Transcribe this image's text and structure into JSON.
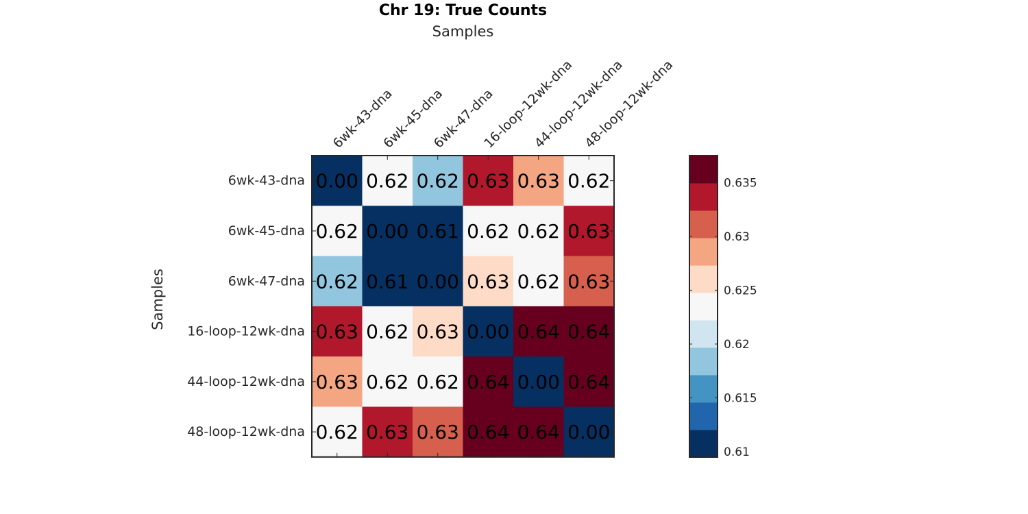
{
  "chart_data": {
    "type": "heatmap",
    "title": "Chr 19: True Counts",
    "xlabel": "Samples",
    "ylabel": "Samples",
    "x_categories": [
      "6wk-43-dna",
      "6wk-45-dna",
      "6wk-47-dna",
      "16-loop-12wk-dna",
      "44-loop-12wk-dna",
      "48-loop-12wk-dna"
    ],
    "y_categories": [
      "6wk-43-dna",
      "6wk-45-dna",
      "6wk-47-dna",
      "16-loop-12wk-dna",
      "44-loop-12wk-dna",
      "48-loop-12wk-dna"
    ],
    "values": [
      [
        0.0,
        0.6225,
        0.619,
        0.634,
        0.6295,
        0.6225
      ],
      [
        0.6225,
        0.0,
        0.61,
        0.6225,
        0.6225,
        0.634
      ],
      [
        0.619,
        0.61,
        0.0,
        0.6265,
        0.6225,
        0.632
      ],
      [
        0.634,
        0.6225,
        0.6265,
        0.0,
        0.637,
        0.637
      ],
      [
        0.6295,
        0.6225,
        0.6225,
        0.637,
        0.0,
        0.637
      ],
      [
        0.6225,
        0.634,
        0.632,
        0.637,
        0.637,
        0.0
      ]
    ],
    "cell_labels": [
      [
        "0.00",
        "0.62",
        "0.62",
        "0.63",
        "0.63",
        "0.62"
      ],
      [
        "0.62",
        "0.00",
        "0.61",
        "0.62",
        "0.62",
        "0.63"
      ],
      [
        "0.62",
        "0.61",
        "0.00",
        "0.63",
        "0.62",
        "0.63"
      ],
      [
        "0.63",
        "0.62",
        "0.63",
        "0.00",
        "0.64",
        "0.64"
      ],
      [
        "0.63",
        "0.62",
        "0.62",
        "0.64",
        "0.00",
        "0.64"
      ],
      [
        "0.62",
        "0.63",
        "0.63",
        "0.64",
        "0.64",
        "0.00"
      ]
    ],
    "colorbar": {
      "range": [
        0.6095,
        0.6375
      ],
      "colors": [
        "#053061",
        "#2166ac",
        "#4393c3",
        "#92c5de",
        "#d1e5f0",
        "#f7f7f7",
        "#fddbc7",
        "#f4a582",
        "#d6604d",
        "#b2182b",
        "#67001f"
      ],
      "ticks": [
        0.61,
        0.615,
        0.62,
        0.625,
        0.63,
        0.635
      ],
      "tick_labels": [
        "0.61",
        "0.615",
        "0.62",
        "0.625",
        "0.63",
        "0.635"
      ]
    },
    "grid": false,
    "legend": "colorbar-right"
  }
}
